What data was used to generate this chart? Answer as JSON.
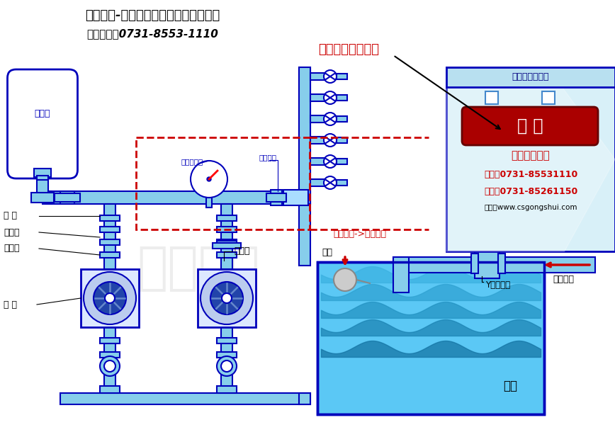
{
  "title_line1": "中赢供水-专注变频节能技术的给水品牌",
  "title_line2": "咨询电话：0731-8553-1110",
  "bg_color": "#ffffff",
  "blue": "#0000bb",
  "pipe_fill": "#87ceeb",
  "pipe_fill2": "#add8e6",
  "tank_bg": "#5bc8f5",
  "wave1": "#4db8e8",
  "wave2": "#3aa8d8",
  "wave3": "#2898c8",
  "wave4": "#1888b8",
  "red": "#cc0000",
  "panel_bg": "#d8f0f8",
  "panel_top": "#b8e0f0",
  "pump_bg": "#dde8ff",
  "pump_impeller": "#2244aa",
  "gray_ball": "#aaaaaa",
  "inlet_arrow_color": "#cc0000",
  "label_蝶阀": "蝶 阀",
  "label_止回阀": "止回阀",
  "label_软接头": "软接头",
  "label_水泵": "水 泵",
  "label_压力罐": "压力罐",
  "label_远传压力表": "远传压力表",
  "label_出水蝶阀": "出水蝶阀",
  "label_电磁阀": "电磁阀",
  "label_浮球": "浮球",
  "label_接自来水": "接自来水",
  "label_Y型过滤器": "Y型过滤器",
  "label_水箱": "水箱",
  "label_来水量多": "来水量多->空气排除",
  "panel_title": "变频供水控制柜",
  "panel_button": "启 动",
  "panel_company": "中赢供水集团",
  "panel_tel": "电话：0731-85531110",
  "panel_fax": "传真：0731-85261150",
  "panel_web": "网址：www.csgongshui.com",
  "click_text": "点击启动演示开始"
}
